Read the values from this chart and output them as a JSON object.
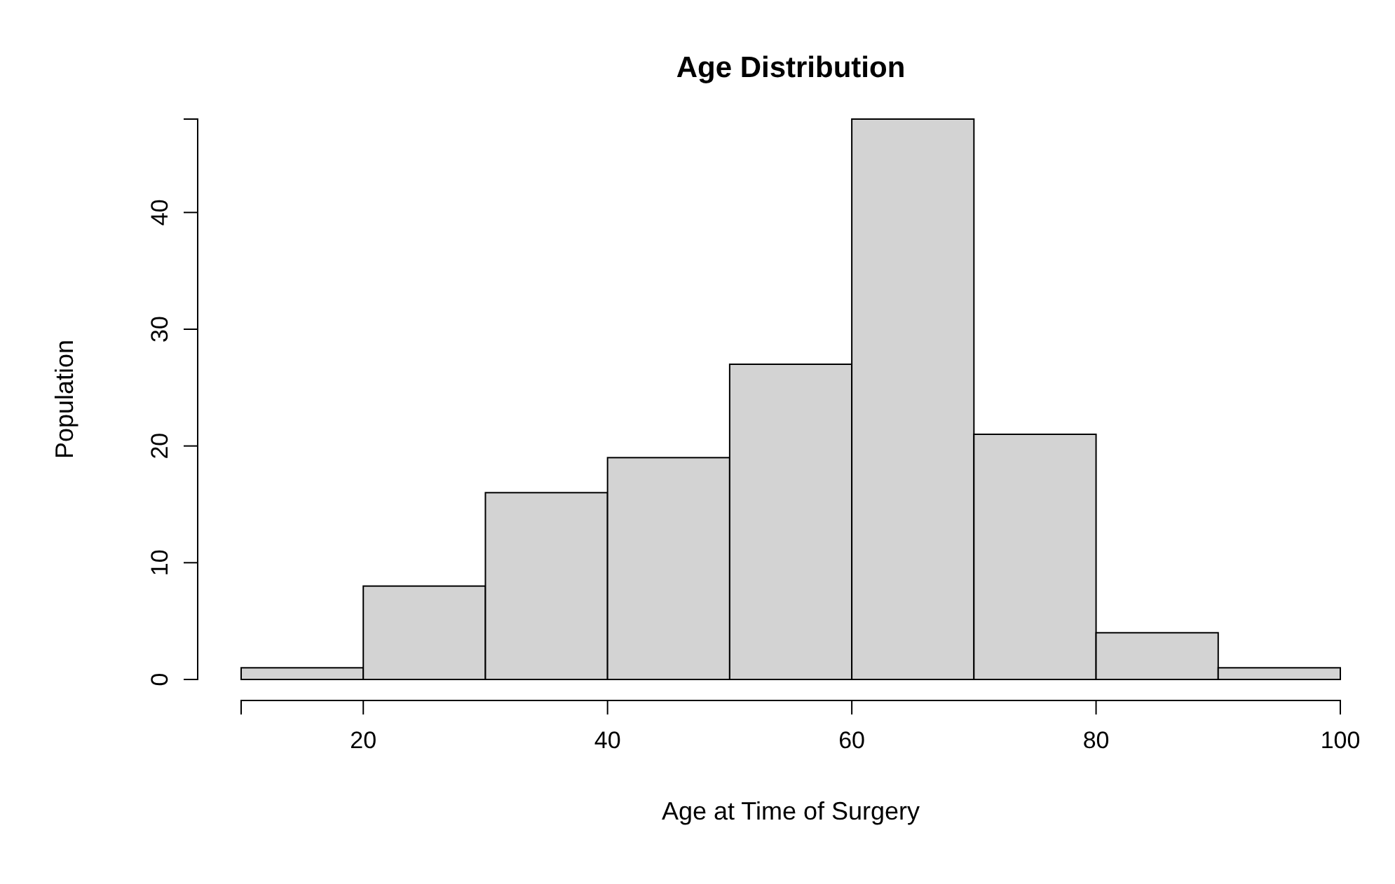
{
  "chart_data": {
    "type": "histogram",
    "title": "Age Distribution",
    "xlabel": "Age at Time of Surgery",
    "ylabel": "Population",
    "bins": [
      10,
      20,
      30,
      40,
      50,
      60,
      70,
      80,
      90,
      100
    ],
    "values": [
      1,
      8,
      16,
      19,
      27,
      48,
      21,
      4,
      1
    ],
    "color": "#d3d3d3",
    "xlim": [
      10,
      100
    ],
    "xticks": [
      20,
      40,
      60,
      80,
      100
    ],
    "ylim": [
      0,
      48
    ],
    "yticks": [
      0,
      10,
      20,
      30,
      40
    ],
    "grid": false
  }
}
